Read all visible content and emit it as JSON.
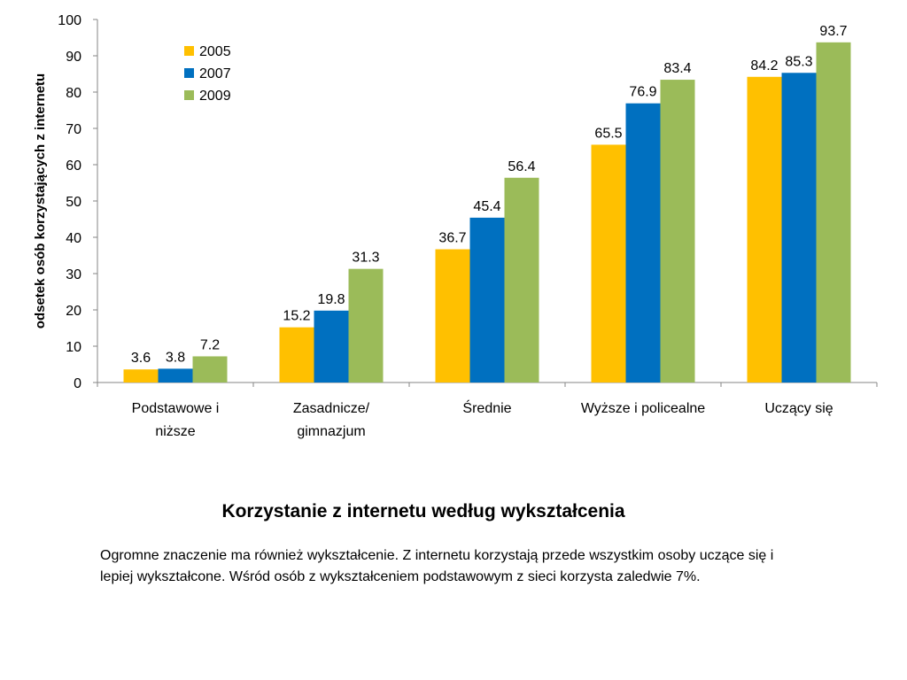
{
  "chart_data": {
    "type": "bar",
    "ylabel": "odsetek osób korzystających z internetu",
    "xlabel": "",
    "ylim": [
      0,
      100
    ],
    "yticks": [
      "0",
      "10",
      "20",
      "30",
      "40",
      "50",
      "60",
      "70",
      "80",
      "90",
      "100"
    ],
    "categories": [
      "Podstawowe i niższe",
      "Zasadnicze/ gimnazjum",
      "Średnie",
      "Wyższe i policealne",
      "Uczący się"
    ],
    "category_lines": [
      [
        "Podstawowe i",
        "niższe"
      ],
      [
        "Zasadnicze/",
        "gimnazjum"
      ],
      [
        "Średnie"
      ],
      [
        "Wyższe i policealne"
      ],
      [
        "Uczący się"
      ]
    ],
    "series": [
      {
        "name": "2005",
        "color": "#FFC000",
        "values": [
          3.6,
          15.2,
          36.7,
          65.5,
          84.2
        ]
      },
      {
        "name": "2007",
        "color": "#0070C0",
        "values": [
          3.8,
          19.8,
          45.4,
          76.9,
          85.3
        ]
      },
      {
        "name": "2009",
        "color": "#9BBB59",
        "values": [
          7.2,
          31.3,
          56.4,
          83.4,
          93.7
        ]
      }
    ],
    "data_labels": true,
    "legend_position": "top-left",
    "grid": false
  },
  "page": {
    "title": "Korzystanie z internetu według wykształcenia",
    "description": "Ogromne znaczenie ma również wykształcenie. Z internetu korzystają przede wszystkim osoby uczące się i lepiej wykształcone. Wśród osób z wykształceniem podstawowym z sieci korzysta zaledwie 7%."
  }
}
